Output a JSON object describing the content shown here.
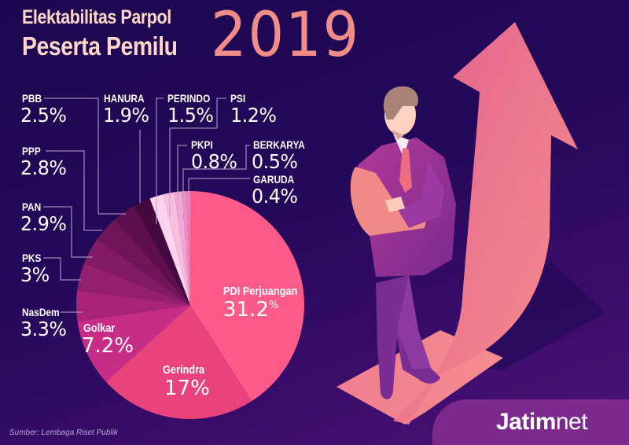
{
  "header": {
    "title_line1": "Elektabilitas Parpol",
    "title_line2": "Peserta Pemilu",
    "year": "2019"
  },
  "colors": {
    "background": "#220954",
    "title": "#fcd7c9",
    "year": "#f28c86",
    "arrow": "#ef8a8f",
    "brand_bar": "#7c2b8c"
  },
  "chart_data": {
    "type": "pie",
    "title": "Elektabilitas Parpol Peserta Pemilu 2019",
    "unit": "%",
    "start": "top",
    "direction": "clockwise",
    "slices": [
      {
        "name": "PDI Perjuangan",
        "value": 31.2,
        "label": "31.2",
        "color": "#fc5a88"
      },
      {
        "name": "Gerindra",
        "value": 17,
        "label": "17%",
        "color": "#e8437c"
      },
      {
        "name": "Golkar",
        "value": 7.2,
        "label": "7.2%",
        "color": "#c52d87"
      },
      {
        "name": "NasDem",
        "value": 3.3,
        "label": "3.3%",
        "color": "#a92479"
      },
      {
        "name": "PKS",
        "value": 3,
        "label": "3%",
        "color": "#951f6f"
      },
      {
        "name": "PAN",
        "value": 2.9,
        "label": "2.9%",
        "color": "#831a66"
      },
      {
        "name": "PPP",
        "value": 2.8,
        "label": "2.8%",
        "color": "#70155a"
      },
      {
        "name": "PBB",
        "value": 2.5,
        "label": "2.5%",
        "color": "#5d104d"
      },
      {
        "name": "HANURA",
        "value": 1.9,
        "label": "1.9%",
        "color": "#440a3d"
      },
      {
        "name": "PERINDO",
        "value": 1.5,
        "label": "1.5%",
        "color": "#fdd3ec"
      },
      {
        "name": "PSI",
        "value": 1.2,
        "label": "1.2%",
        "color": "#f9bde0"
      },
      {
        "name": "PKPI",
        "value": 0.8,
        "label": "0.8%",
        "color": "#f6a6d4"
      },
      {
        "name": "BERKARYA",
        "value": 0.5,
        "label": "0.5%",
        "color": "#f190c7"
      },
      {
        "name": "GARUDA",
        "value": 0.4,
        "label": "0.4%",
        "color": "#ee7fbf"
      }
    ],
    "pdi_percent_sign": "%"
  },
  "source": "Sumber: Lembaga Riset Publik",
  "brand": {
    "name_bold": "Jatim",
    "name_light": "net"
  }
}
